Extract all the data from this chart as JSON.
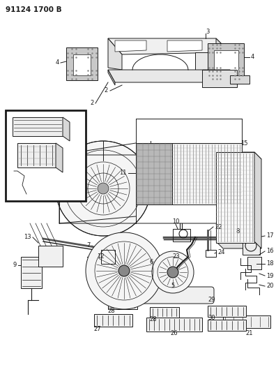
{
  "title": "91124 1700 B",
  "bg_color": "#ffffff",
  "line_color": "#1a1a1a",
  "figsize": [
    3.96,
    5.33
  ],
  "dpi": 100,
  "label_fontsize": 6.0
}
